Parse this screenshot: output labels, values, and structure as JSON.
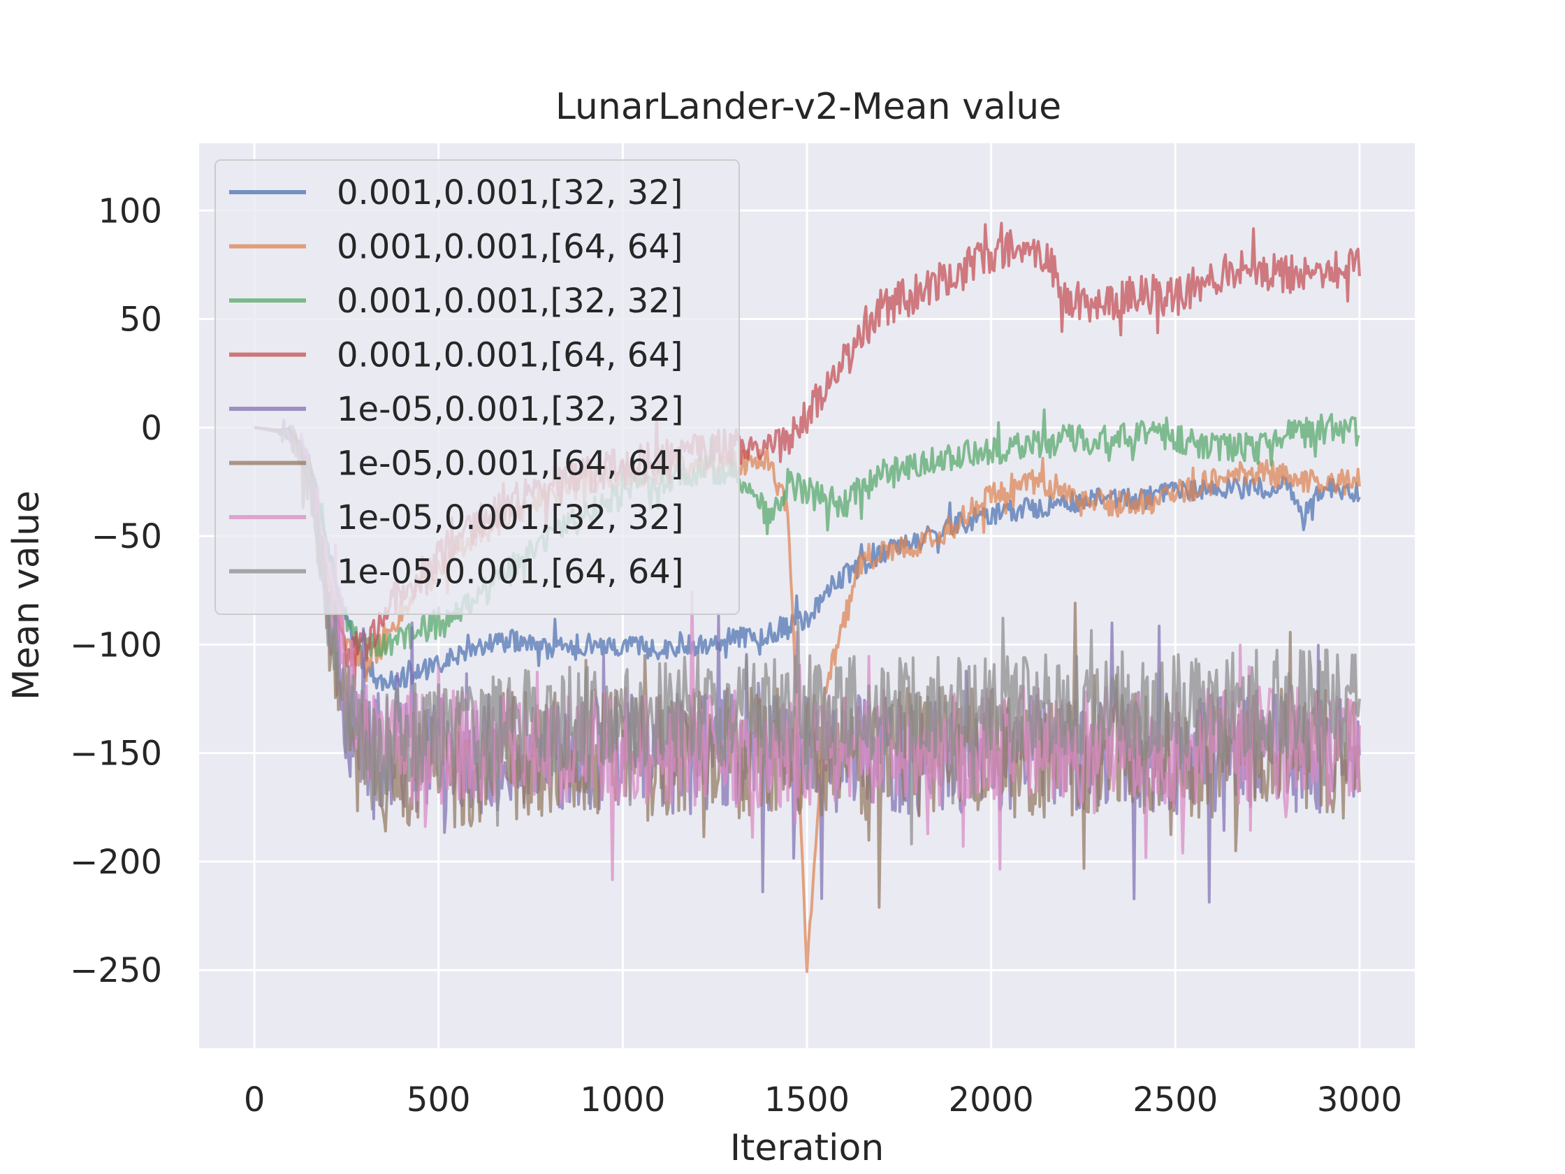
{
  "chart_data": {
    "type": "line",
    "title": "LunarLander-v2-Mean value",
    "xlabel": "Iteration",
    "ylabel": "Mean value",
    "xlim": [
      -150,
      3150
    ],
    "ylim": [
      -286,
      131
    ],
    "xticks": [
      0,
      500,
      1000,
      1500,
      2000,
      2500,
      3000
    ],
    "yticks": [
      100,
      50,
      0,
      -50,
      -100,
      -150,
      -200,
      -250
    ],
    "ytick_labels": [
      "100",
      "50",
      "0",
      "−50",
      "−100",
      "−150",
      "−200",
      "−250"
    ],
    "grid": true,
    "legend_position": "upper-left",
    "series": [
      {
        "name": "0.001,0.001,[32, 32]",
        "color": "#4c72b0",
        "x": [
          0,
          100,
          150,
          200,
          250,
          300,
          350,
          400,
          500,
          600,
          700,
          800,
          900,
          1000,
          1100,
          1200,
          1300,
          1400,
          1450,
          1500,
          1550,
          1600,
          1700,
          1800,
          1900,
          2000,
          2100,
          2200,
          2300,
          2400,
          2500,
          2600,
          2700,
          2800,
          2850,
          2900,
          3000
        ],
        "y": [
          0,
          -2,
          -15,
          -55,
          -90,
          -110,
          -118,
          -115,
          -110,
          -100,
          -98,
          -102,
          -100,
          -100,
          -102,
          -100,
          -97,
          -95,
          -90,
          -88,
          -78,
          -68,
          -58,
          -52,
          -45,
          -40,
          -37,
          -35,
          -33,
          -33,
          -30,
          -28,
          -28,
          -27,
          -40,
          -28,
          -30
        ],
        "noise": 5
      },
      {
        "name": "0.001,0.001,[64, 64]",
        "color": "#dd8452",
        "x": [
          0,
          100,
          150,
          200,
          250,
          300,
          350,
          400,
          500,
          600,
          700,
          800,
          900,
          1000,
          1100,
          1200,
          1300,
          1400,
          1450,
          1500,
          1550,
          1600,
          1650,
          1700,
          1800,
          1900,
          2000,
          2100,
          2200,
          2300,
          2400,
          2500,
          2600,
          2700,
          2800,
          2900,
          3000
        ],
        "y": [
          0,
          -2,
          -20,
          -70,
          -100,
          -108,
          -100,
          -85,
          -65,
          -50,
          -40,
          -32,
          -25,
          -22,
          -20,
          -18,
          -17,
          -15,
          -40,
          -250,
          -120,
          -90,
          -60,
          -58,
          -55,
          -45,
          -30,
          -25,
          -28,
          -35,
          -35,
          -30,
          -25,
          -20,
          -22,
          -25,
          -25
        ],
        "noise": 6
      },
      {
        "name": "0.001,0.001,[32, 32]",
        "color": "#55a868",
        "x": [
          0,
          100,
          150,
          200,
          250,
          300,
          350,
          400,
          500,
          600,
          700,
          800,
          900,
          1000,
          1100,
          1200,
          1300,
          1350,
          1400,
          1450,
          1500,
          1600,
          1700,
          1800,
          1900,
          2000,
          2100,
          2200,
          2300,
          2400,
          2500,
          2600,
          2700,
          2800,
          2900,
          3000
        ],
        "y": [
          0,
          -2,
          -15,
          -60,
          -90,
          -100,
          -100,
          -98,
          -90,
          -80,
          -65,
          -50,
          -40,
          -30,
          -25,
          -20,
          -20,
          -25,
          -45,
          -25,
          -30,
          -35,
          -22,
          -18,
          -14,
          -10,
          -8,
          -6,
          -5,
          -4,
          -5,
          -8,
          -10,
          -3,
          -1,
          0
        ],
        "noise": 7
      },
      {
        "name": "0.001,0.001,[64, 64]",
        "color": "#c44e52",
        "x": [
          0,
          100,
          150,
          200,
          250,
          300,
          350,
          400,
          500,
          600,
          700,
          800,
          900,
          1000,
          1100,
          1200,
          1300,
          1400,
          1450,
          1500,
          1600,
          1700,
          1800,
          1900,
          2000,
          2100,
          2150,
          2200,
          2300,
          2400,
          2500,
          2600,
          2700,
          2800,
          2900,
          3000
        ],
        "y": [
          0,
          -2,
          -20,
          -75,
          -105,
          -100,
          -88,
          -75,
          -60,
          -45,
          -35,
          -28,
          -22,
          -18,
          -14,
          -10,
          -10,
          -10,
          -8,
          5,
          30,
          55,
          62,
          70,
          80,
          85,
          80,
          60,
          55,
          62,
          60,
          70,
          75,
          70,
          72,
          75
        ],
        "noise": 9
      },
      {
        "name": "1e-05,0.001,[32, 32]",
        "color": "#8172b3",
        "x": [
          0,
          100,
          150,
          200,
          250,
          300,
          350,
          400,
          500,
          700,
          900,
          1100,
          1300,
          1500,
          1700,
          1900,
          2100,
          2300,
          2500,
          2700,
          2900,
          3000
        ],
        "y": [
          0,
          -3,
          -20,
          -80,
          -130,
          -145,
          -150,
          -150,
          -150,
          -150,
          -148,
          -150,
          -150,
          -148,
          -150,
          -152,
          -150,
          -150,
          -150,
          -150,
          -150,
          -150
        ],
        "noise": 28
      },
      {
        "name": "1e-05,0.001,[64, 64]",
        "color": "#937860",
        "x": [
          0,
          100,
          150,
          200,
          250,
          300,
          350,
          400,
          500,
          700,
          900,
          1100,
          1300,
          1500,
          1700,
          1900,
          2100,
          2300,
          2500,
          2700,
          2900,
          3000
        ],
        "y": [
          0,
          -3,
          -25,
          -90,
          -135,
          -155,
          -160,
          -158,
          -155,
          -152,
          -150,
          -152,
          -150,
          -150,
          -148,
          -150,
          -150,
          -150,
          -152,
          -150,
          -150,
          -150
        ],
        "noise": 30
      },
      {
        "name": "1e-05,0.001,[32, 32]",
        "color": "#da8bc3",
        "x": [
          0,
          100,
          150,
          200,
          250,
          300,
          350,
          400,
          500,
          700,
          900,
          1100,
          1300,
          1500,
          1700,
          1900,
          2100,
          2300,
          2500,
          2700,
          2900,
          3000
        ],
        "y": [
          0,
          -3,
          -18,
          -70,
          -110,
          -140,
          -148,
          -148,
          -148,
          -146,
          -148,
          -146,
          -148,
          -148,
          -146,
          -148,
          -146,
          -146,
          -148,
          -146,
          -146,
          -146
        ],
        "noise": 27
      },
      {
        "name": "1e-05,0.001,[64, 64]",
        "color": "#8c8c8c",
        "x": [
          0,
          100,
          150,
          200,
          250,
          300,
          350,
          400,
          500,
          700,
          900,
          1100,
          1300,
          1500,
          1700,
          1900,
          2100,
          2300,
          2500,
          2700,
          2900,
          3000
        ],
        "y": [
          0,
          -3,
          -22,
          -85,
          -130,
          -150,
          -150,
          -145,
          -140,
          -138,
          -135,
          -132,
          -130,
          -130,
          -128,
          -130,
          -128,
          -128,
          -130,
          -128,
          -128,
          -128
        ],
        "noise": 26
      }
    ]
  }
}
